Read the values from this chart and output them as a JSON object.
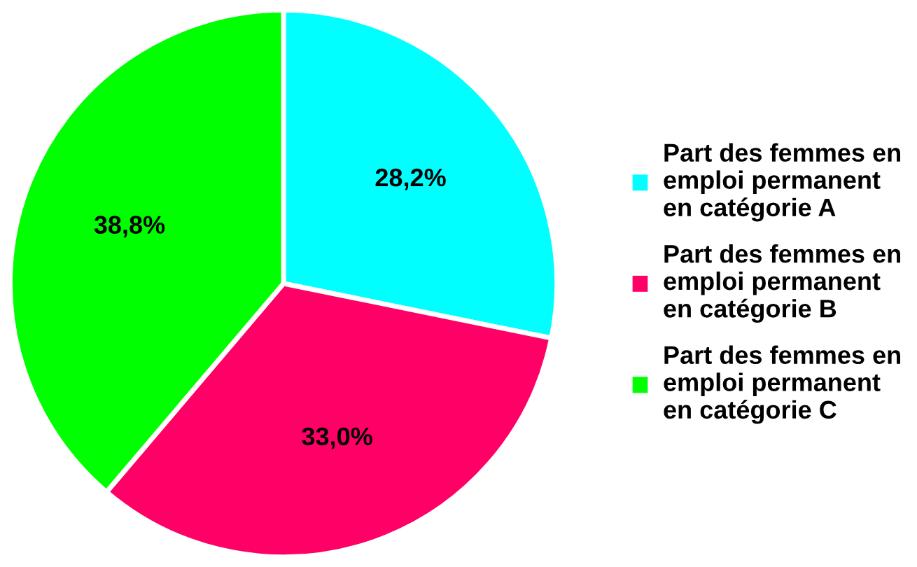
{
  "chart_data": {
    "type": "pie",
    "categories": [
      "Part des femmes en\nemploi permanent\nen catégorie A",
      "Part des femmes en\nemploi permanent\nen catégorie B",
      "Part des femmes en\nemploi permanent\nen catégorie C"
    ],
    "values": [
      28.2,
      33.0,
      38.8
    ],
    "colors": [
      "#00ffff",
      "#ff0066",
      "#00ff00"
    ],
    "value_labels": [
      "28,2%",
      "33,0%",
      "38,8%"
    ],
    "legend": "right"
  }
}
